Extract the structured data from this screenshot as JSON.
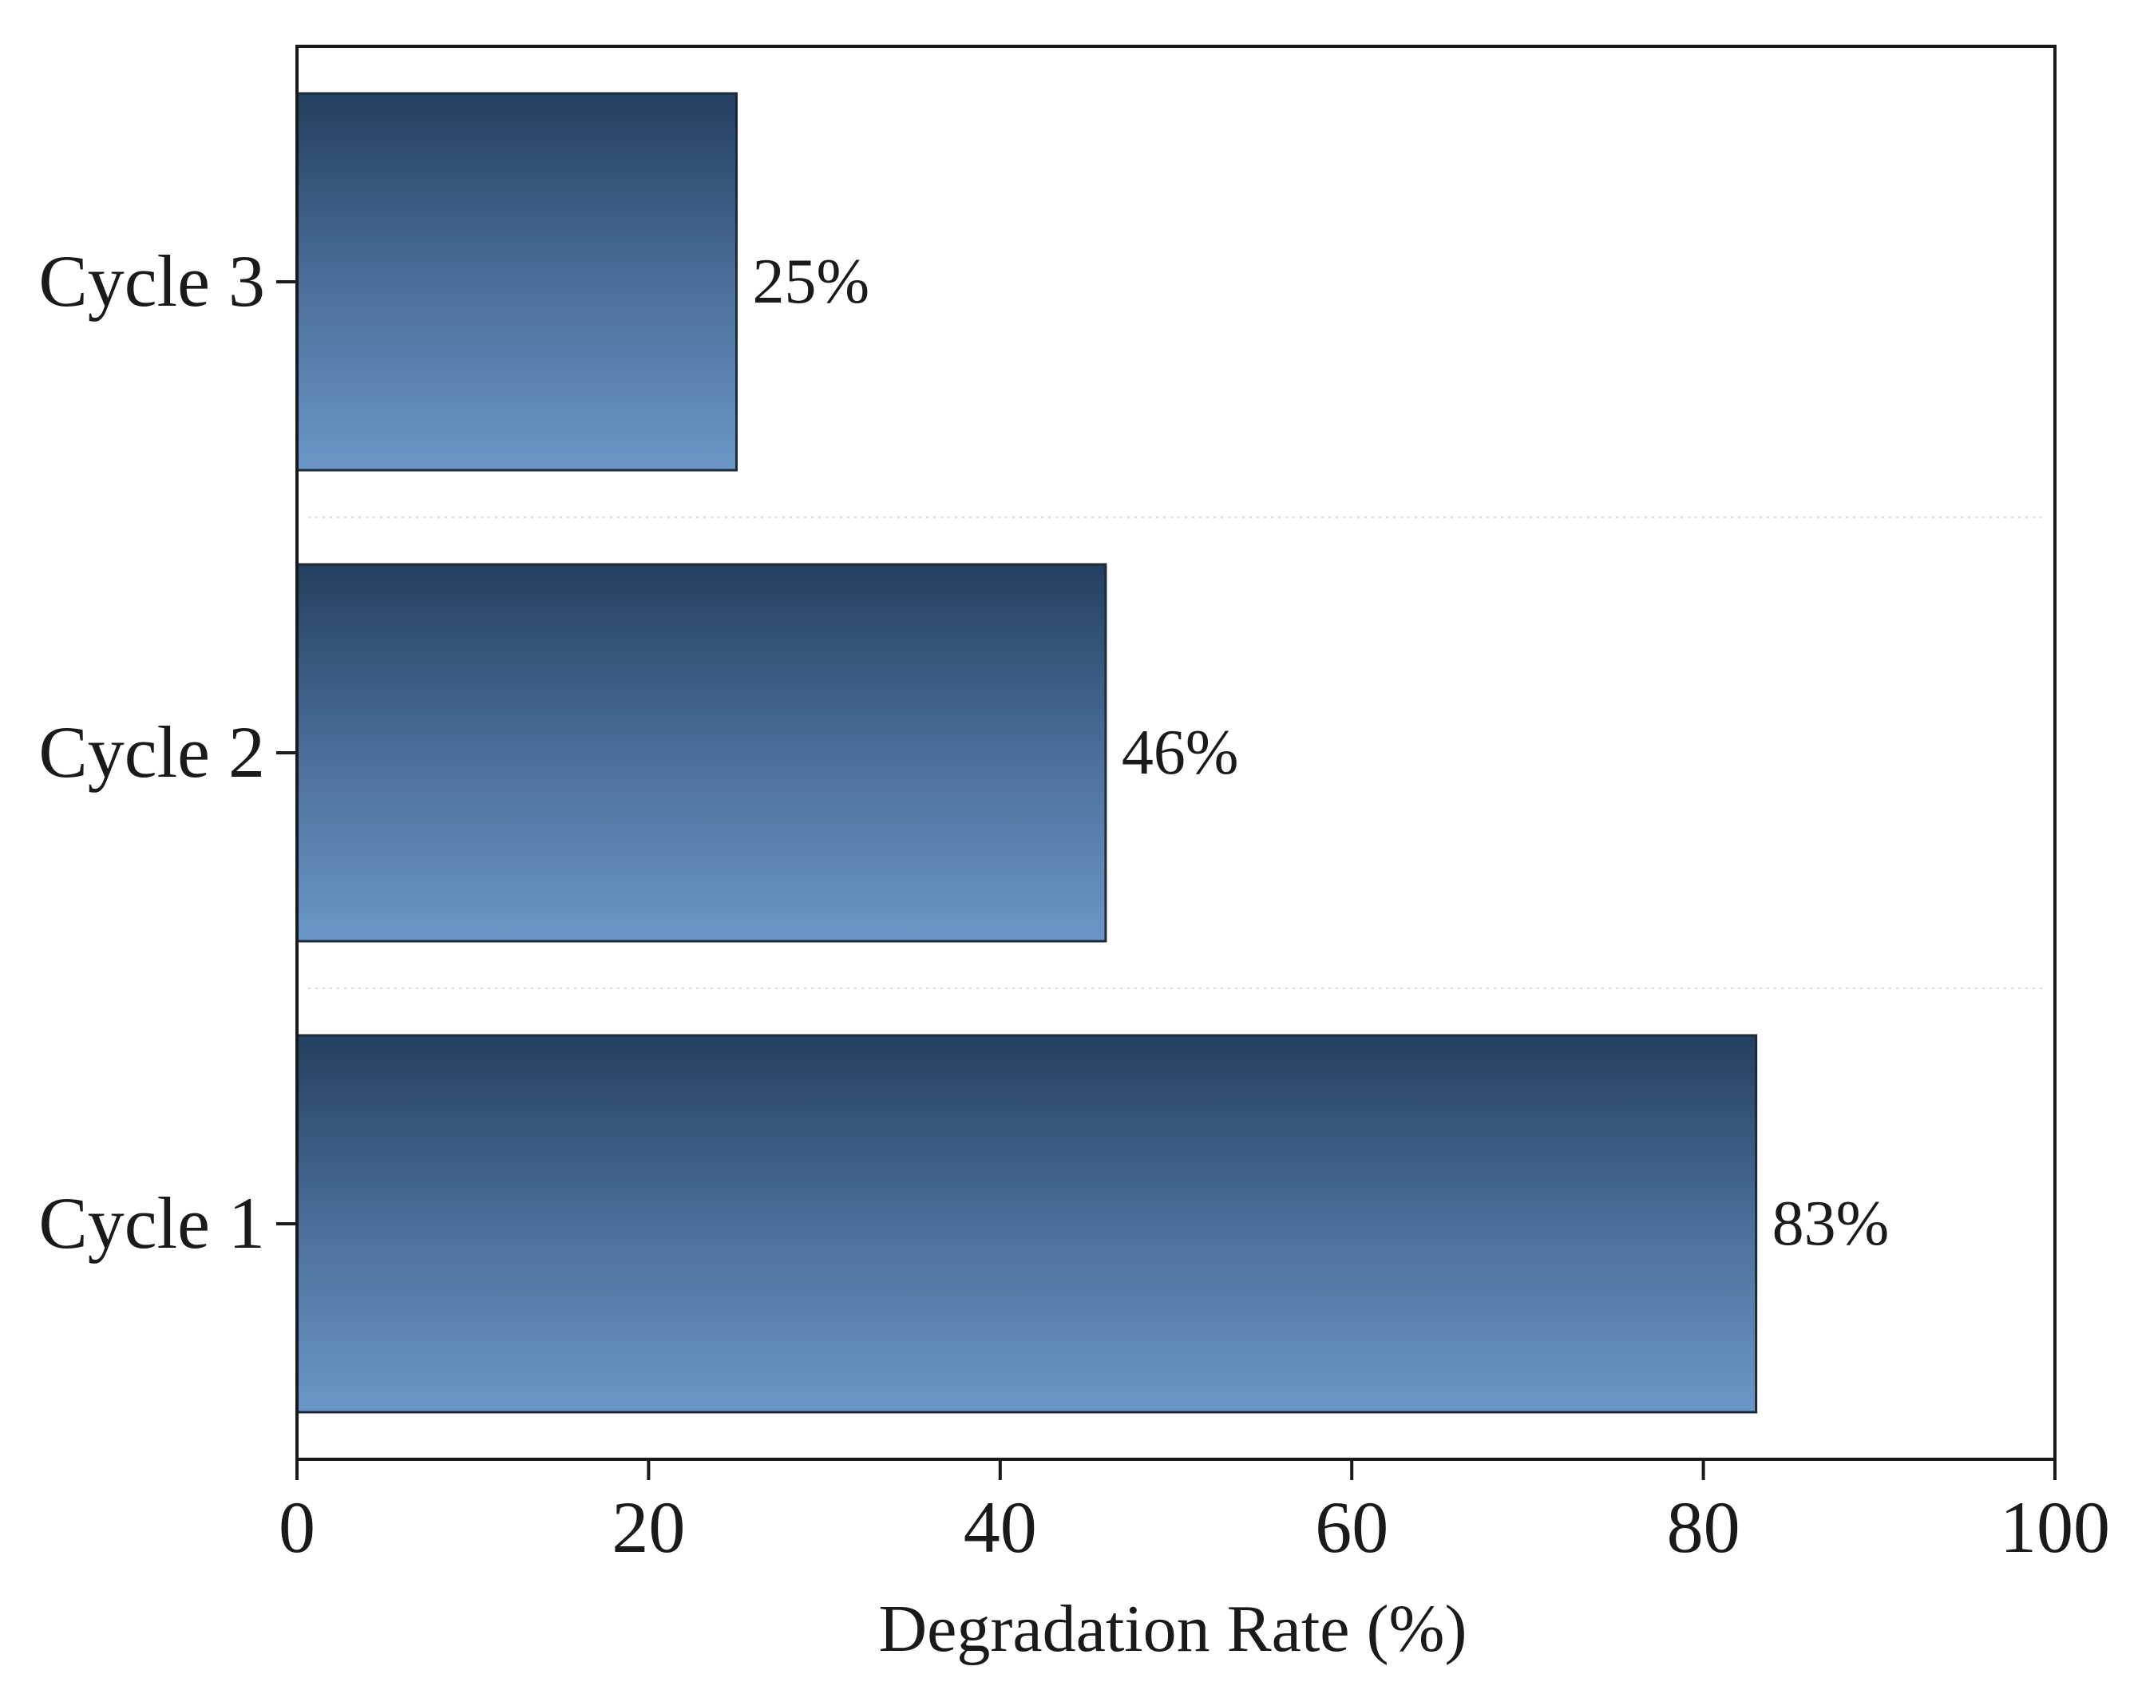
{
  "chart_data": {
    "type": "bar",
    "orientation": "horizontal",
    "title": "",
    "categories": [
      "Cycle 1",
      "Cycle 2",
      "Cycle 3"
    ],
    "values": [
      83,
      46,
      25
    ],
    "value_labels": [
      "83%",
      "46%",
      "25%"
    ],
    "xlabel": "Degradation Rate (%)",
    "ylabel": "",
    "xlim": [
      0,
      100
    ],
    "xticks": [
      0,
      20,
      40,
      60,
      80,
      100
    ],
    "xtick_labels": [
      "0",
      "20",
      "40",
      "60",
      "80",
      "100"
    ],
    "grid": "dotted separators between categories",
    "legend": "none",
    "colors": {
      "bar_top": "#233f60",
      "bar_mid": "#4a6e98",
      "bar_bottom": "#6a97c6",
      "bar_edge": "#1c2b3c",
      "axis": "#1a1a1a",
      "text": "#1a1a1a",
      "separator": "#d8dde3"
    }
  }
}
